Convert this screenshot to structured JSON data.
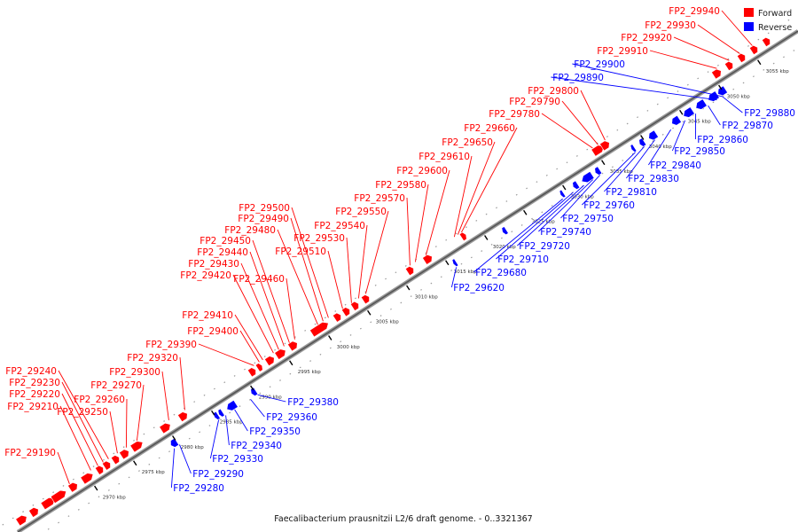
{
  "caption": "Faecalibacterium prausnitzii L2/6 draft genome. - 0..3321367",
  "legend": [
    {
      "label": "Forward",
      "color": "#ff0000"
    },
    {
      "label": "Reverse",
      "color": "#0000ff"
    }
  ],
  "colors": {
    "forward": "#ff0000",
    "reverse": "#0000ff",
    "backbone": "#777777"
  },
  "ticks": [
    "2970 kbp",
    "2975 kbp",
    "2980 kbp",
    "2985 kbp",
    "2990 kbp",
    "2995 kbp",
    "3000 kbp",
    "3005 kbp",
    "3010 kbp",
    "3015 kbp",
    "3020 kbp",
    "3025 kbp",
    "3030 kbp",
    "3035 kbp",
    "3040 kbp",
    "3045 kbp",
    "3050 kbp",
    "3055 kbp"
  ],
  "forward_labels": [
    "FP2_29940",
    "FP2_29930",
    "FP2_29920",
    "FP2_29910",
    "FP2_29800",
    "FP2_29790",
    "FP2_29780",
    "FP2_29660",
    "FP2_29650",
    "FP2_29610",
    "FP2_29600",
    "FP2_29580",
    "FP2_29570",
    "FP2_29550",
    "FP2_29540",
    "FP2_29530",
    "FP2_29510",
    "FP2_29500",
    "FP2_29490",
    "FP2_29480",
    "FP2_29460",
    "FP2_29450",
    "FP2_29440",
    "FP2_29430",
    "FP2_29420",
    "FP2_29410",
    "FP2_29400",
    "FP2_29390",
    "FP2_29320",
    "FP2_29300",
    "FP2_29270",
    "FP2_29260",
    "FP2_29250",
    "FP2_29240",
    "FP2_29230",
    "FP2_29220",
    "FP2_29210",
    "FP2_29190"
  ],
  "reverse_labels": [
    "FP2_29900",
    "FP2_29890",
    "FP2_29880",
    "FP2_29870",
    "FP2_29860",
    "FP2_29850",
    "FP2_29840",
    "FP2_29830",
    "FP2_29810",
    "FP2_29760",
    "FP2_29750",
    "FP2_29740",
    "FP2_29720",
    "FP2_29710",
    "FP2_29680",
    "FP2_29620",
    "FP2_29380",
    "FP2_29360",
    "FP2_29350",
    "FP2_29340",
    "FP2_29330",
    "FP2_29290",
    "FP2_29280"
  ]
}
